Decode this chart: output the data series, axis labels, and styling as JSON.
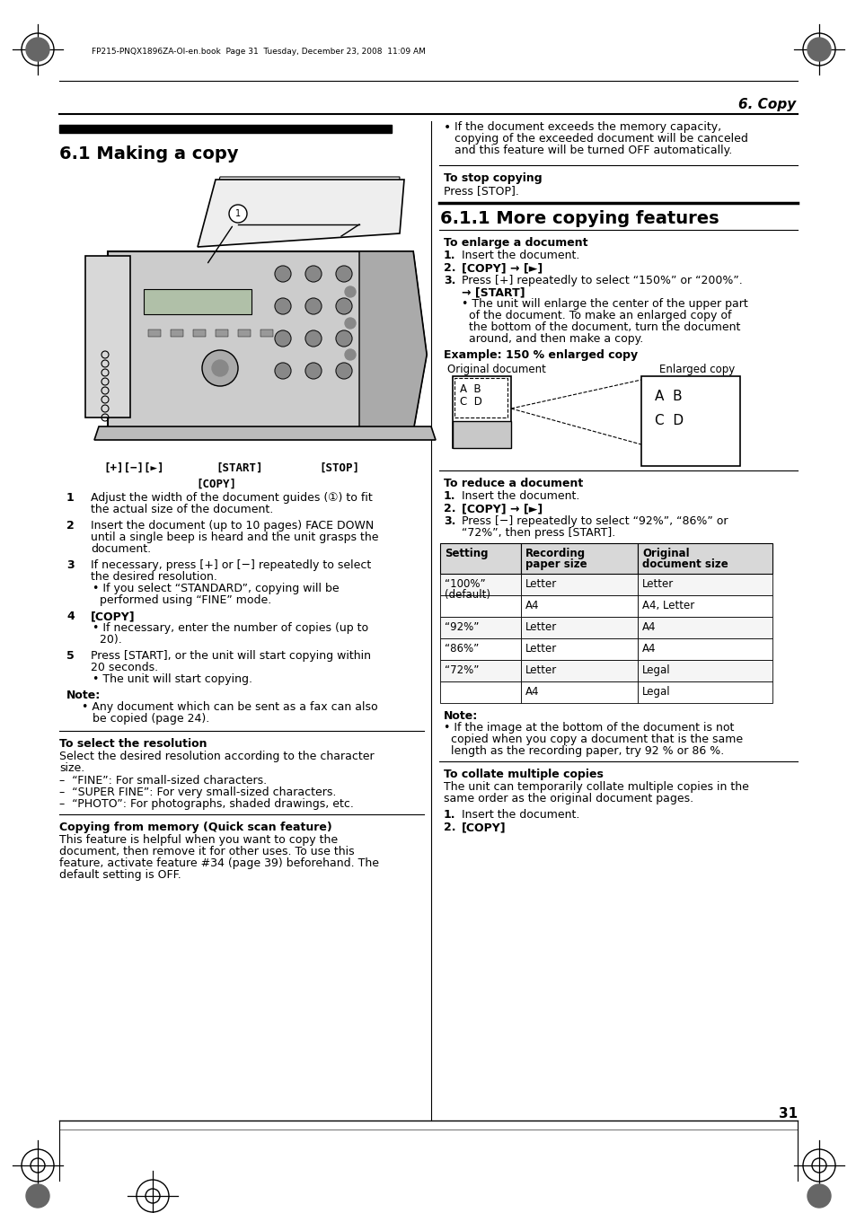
{
  "page_bg": "#ffffff",
  "page_width": 9.54,
  "page_height": 13.51,
  "header_text": "FP215-PNQX1896ZA-OI-en.book  Page 31  Tuesday, December 23, 2008  11:09 AM",
  "section_title": "6. Copy",
  "subsection_title": "6.1 Making a copy",
  "subsection2_title": "6.1.1 More copying features",
  "page_number": "31"
}
